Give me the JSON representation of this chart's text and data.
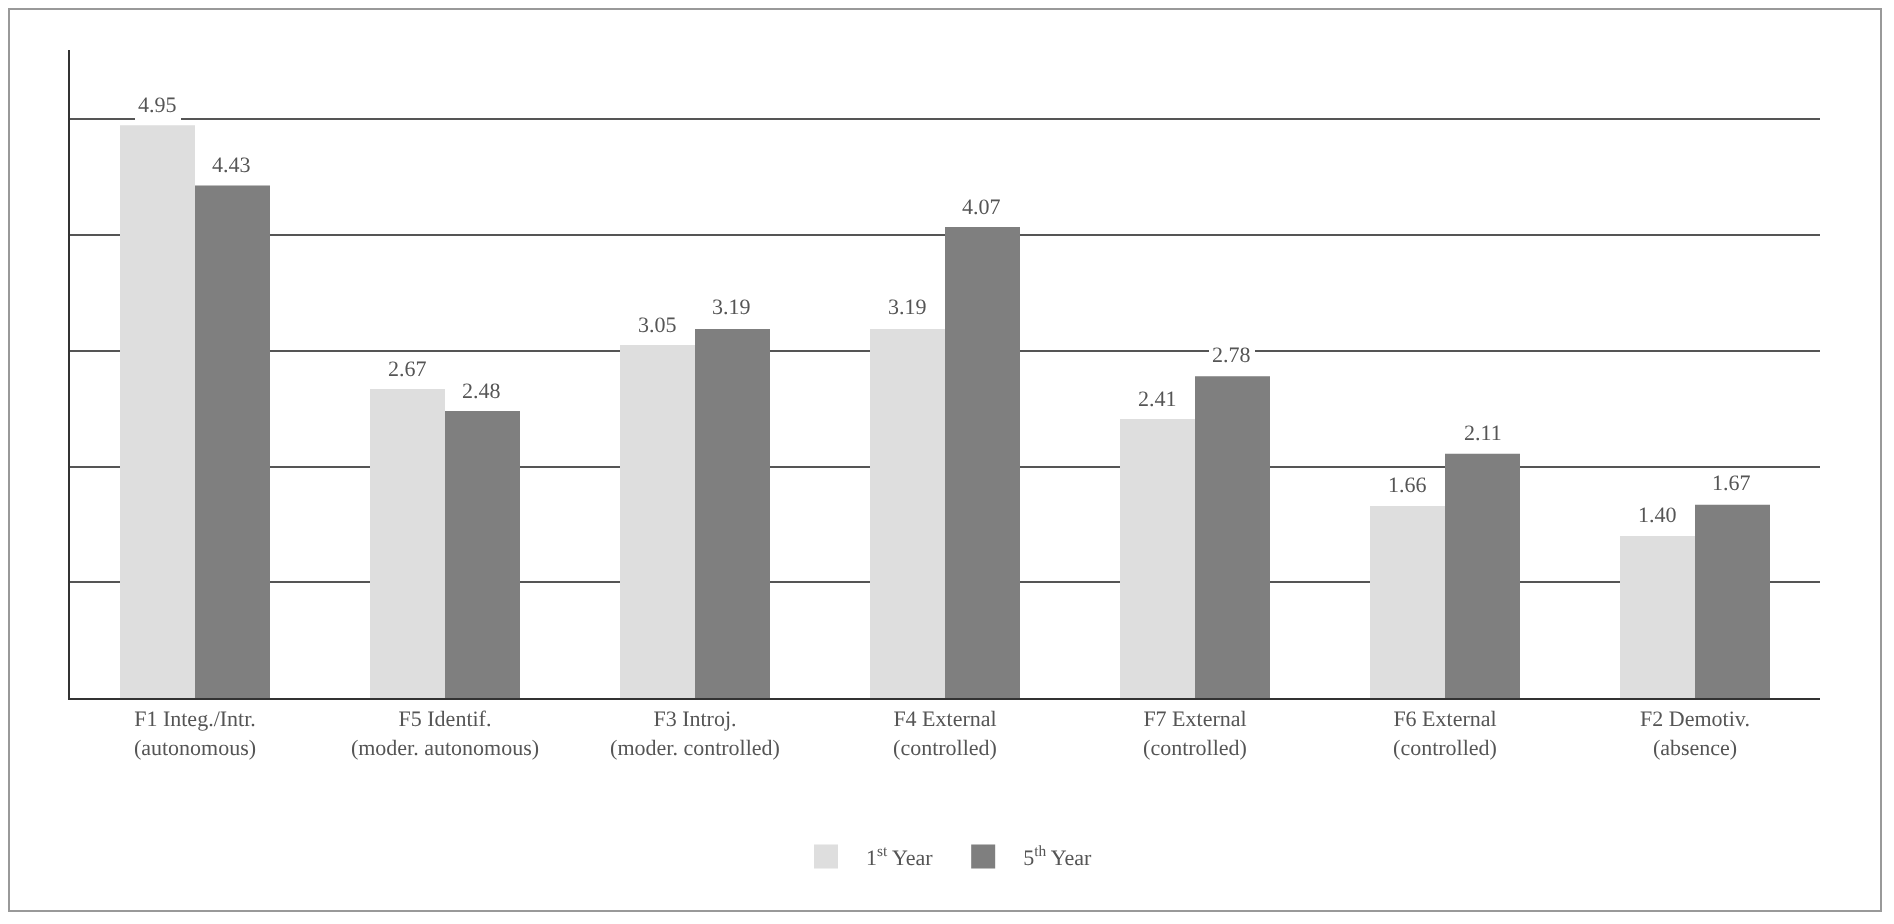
{
  "chart_data": {
    "type": "bar",
    "categories": [
      "F1 Integ./Intr.\n(autonomous)",
      "F5 Identif.\n(moder. autonomous)",
      "F3 Introj.\n(moder. controlled)",
      "F4 External\n(controlled)",
      "F7 External\n(controlled)",
      "F6 External\n(controlled)",
      "F2 Demotiv.\n(absence)"
    ],
    "series": [
      {
        "name": "1$^{st}$ Year",
        "color": "#dedede",
        "values": [
          4.95,
          2.67,
          3.05,
          3.19,
          2.41,
          1.66,
          1.4
        ],
        "value_labels": [
          "4.95",
          "2.67",
          "3.05",
          "3.19",
          "2.41",
          "1.66",
          "1.40"
        ]
      },
      {
        "name": "5$^{th}$ Year",
        "color": "#7f7f7f",
        "values": [
          4.43,
          2.48,
          3.19,
          4.07,
          2.78,
          2.11,
          1.67
        ],
        "value_labels": [
          "4.43",
          "2.48",
          "3.19",
          "4.07",
          "2.78",
          "2.11",
          "1.67"
        ]
      }
    ],
    "ylim": [
      0,
      5.6
    ],
    "yticks": [
      {
        "value": 0,
        "label": null
      },
      {
        "value": 1,
        "label": null
      },
      {
        "value": 2,
        "label": null
      },
      {
        "value": 3,
        "label": null
      },
      {
        "value": 4,
        "label": null
      },
      {
        "value": 5,
        "label": null
      }
    ],
    "grid": "y",
    "legend": "bottom"
  }
}
